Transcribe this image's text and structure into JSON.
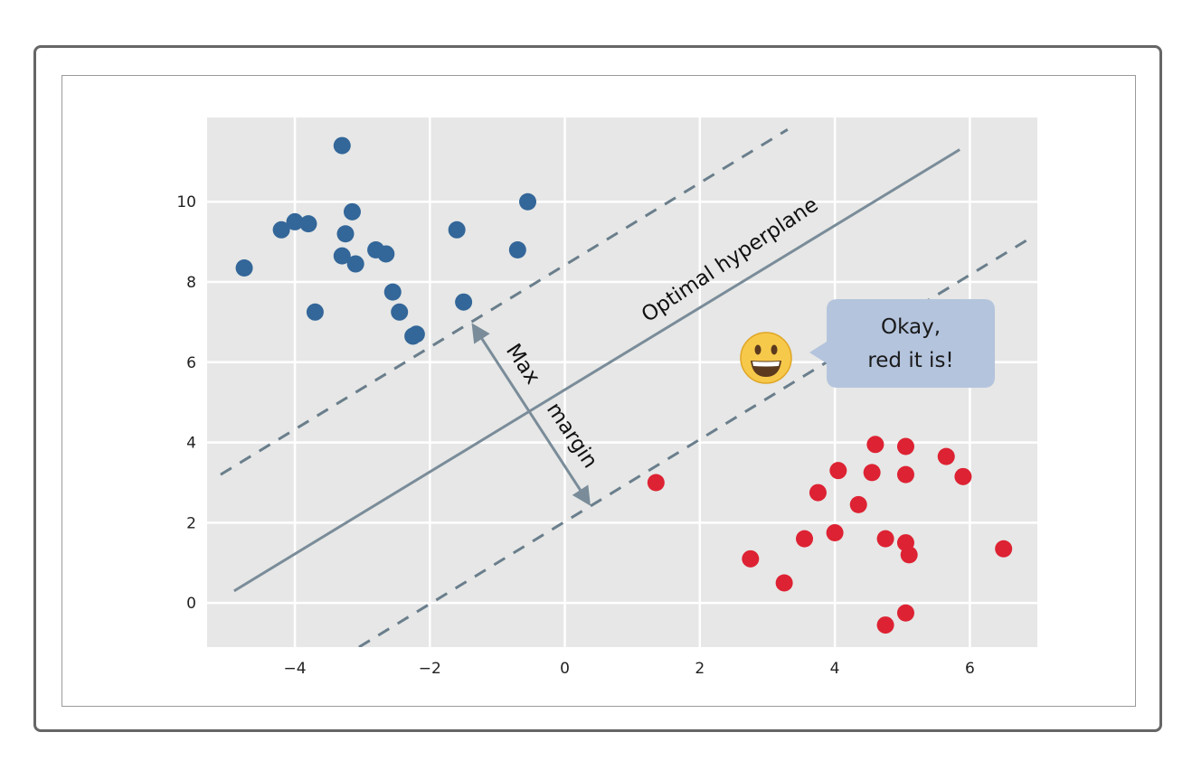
{
  "chart_data": {
    "type": "scatter",
    "title": "",
    "xlabel": "",
    "ylabel": "",
    "xlim": [
      -5.3,
      7.0
    ],
    "ylim": [
      -1.1,
      12.1
    ],
    "xticks": [
      -4,
      -2,
      0,
      2,
      4,
      6
    ],
    "yticks": [
      0,
      2,
      4,
      6,
      8,
      10
    ],
    "xtick_labels": [
      "−4",
      "−2",
      "0",
      "2",
      "4",
      "6"
    ],
    "ytick_labels": [
      "0",
      "2",
      "4",
      "6",
      "8",
      "10"
    ],
    "grid": true,
    "background": "#e6e7e6",
    "series": [
      {
        "color": "#336699",
        "points": [
          [
            -3.3,
            11.4
          ],
          [
            -0.55,
            10.0
          ],
          [
            -4.2,
            9.3
          ],
          [
            -4.0,
            9.5
          ],
          [
            -3.8,
            9.45
          ],
          [
            -3.15,
            9.75
          ],
          [
            -3.25,
            9.2
          ],
          [
            -1.6,
            9.3
          ],
          [
            -2.8,
            8.8
          ],
          [
            -2.65,
            8.7
          ],
          [
            -3.3,
            8.65
          ],
          [
            -3.1,
            8.45
          ],
          [
            -0.7,
            8.8
          ],
          [
            -4.75,
            8.35
          ],
          [
            -2.55,
            7.75
          ],
          [
            -1.5,
            7.5
          ],
          [
            -3.7,
            7.25
          ],
          [
            -2.45,
            7.25
          ],
          [
            -2.25,
            6.65
          ],
          [
            -2.2,
            6.7
          ]
        ]
      },
      {
        "color": "#dd2233",
        "points": [
          [
            1.35,
            3.0
          ],
          [
            4.6,
            3.95
          ],
          [
            5.05,
            3.9
          ],
          [
            5.65,
            3.65
          ],
          [
            5.9,
            3.15
          ],
          [
            4.05,
            3.3
          ],
          [
            4.55,
            3.25
          ],
          [
            5.05,
            3.2
          ],
          [
            3.75,
            2.75
          ],
          [
            4.35,
            2.45
          ],
          [
            4.0,
            1.75
          ],
          [
            3.55,
            1.6
          ],
          [
            4.75,
            1.6
          ],
          [
            5.05,
            1.5
          ],
          [
            5.1,
            1.2
          ],
          [
            6.5,
            1.35
          ],
          [
            2.75,
            1.1
          ],
          [
            3.25,
            0.5
          ],
          [
            5.05,
            -0.25
          ],
          [
            4.75,
            -0.55
          ]
        ]
      }
    ],
    "lines": [
      {
        "style": "solid",
        "color": "#7a8c99",
        "from": [
          -4.9,
          0.3
        ],
        "to": [
          5.85,
          11.3
        ]
      },
      {
        "style": "dashed",
        "color": "#6a7e8c",
        "from": [
          -5.1,
          3.2
        ],
        "to": [
          3.3,
          11.8
        ]
      },
      {
        "style": "dashed",
        "color": "#6a7e8c",
        "from": [
          -3.05,
          -1.1
        ],
        "to": [
          6.95,
          9.15
        ]
      }
    ],
    "arrow": {
      "color": "#7a8c99",
      "from": [
        -1.35,
        6.9
      ],
      "to": [
        0.35,
        2.5
      ]
    },
    "annotations": {
      "hyperplane_label": "Optimal hyperplane",
      "margin_label_1": "Max",
      "margin_label_2": "margin",
      "speech_line_1": "Okay,",
      "speech_line_2": "red it is!",
      "emoji": "😀",
      "emoji_icon": "grinning-face-icon",
      "bubble_color": "#b4c4dd"
    }
  }
}
